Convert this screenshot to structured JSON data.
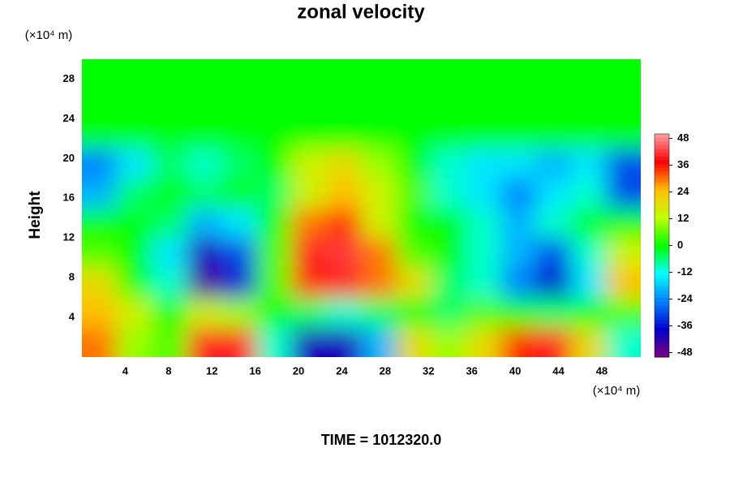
{
  "chart_data": {
    "type": "heatmap",
    "title": "zonal velocity",
    "ylabel": "Height",
    "x_unit": "(×10⁴ m)",
    "y_unit": "(×10⁴ m)",
    "footer": "TIME = 1012320.0",
    "xlim": [
      0,
      51.6
    ],
    "ylim": [
      0,
      30
    ],
    "xticks": [
      4,
      8,
      12,
      16,
      20,
      24,
      28,
      32,
      36,
      40,
      44,
      48
    ],
    "yticks": [
      4,
      8,
      12,
      16,
      20,
      24,
      28
    ],
    "x": [
      1.6,
      4.8,
      8.1,
      11.3,
      14.5,
      17.7,
      21,
      24.2,
      27.4,
      30.6,
      33.9,
      37.1,
      40.3,
      43.5,
      46.8,
      50
    ],
    "y": [
      1.5,
      4.5,
      7.5,
      10.5,
      13.5,
      16.5,
      19.5,
      22.5,
      25.5,
      28.5
    ],
    "z": [
      [
        30,
        10,
        5,
        40,
        40,
        -10,
        -40,
        -40,
        -20,
        20,
        10,
        20,
        35,
        40,
        20,
        -10
      ],
      [
        25,
        15,
        0,
        15,
        10,
        0,
        -5,
        -10,
        -5,
        0,
        -5,
        5,
        0,
        -5,
        0,
        5
      ],
      [
        20,
        0,
        -10,
        -45,
        -35,
        5,
        35,
        40,
        30,
        20,
        -5,
        -10,
        -25,
        -38,
        -15,
        25
      ],
      [
        5,
        0,
        -15,
        -40,
        -30,
        5,
        40,
        42,
        30,
        5,
        0,
        -10,
        -20,
        -30,
        -10,
        15
      ],
      [
        0,
        0,
        -5,
        -20,
        -15,
        0,
        30,
        35,
        15,
        0,
        0,
        -10,
        -20,
        -10,
        0,
        0
      ],
      [
        -20,
        -5,
        0,
        -5,
        0,
        -5,
        15,
        25,
        15,
        5,
        -10,
        -15,
        -25,
        -15,
        -10,
        -30
      ],
      [
        -25,
        -15,
        -5,
        -10,
        -5,
        0,
        15,
        20,
        10,
        0,
        -10,
        -15,
        -15,
        -20,
        -15,
        -30
      ],
      [
        0,
        0,
        0,
        0,
        0,
        0,
        0,
        0,
        0,
        0,
        0,
        0,
        0,
        0,
        0,
        0
      ],
      [
        0,
        0,
        0,
        0,
        0,
        0,
        0,
        0,
        0,
        0,
        0,
        0,
        0,
        0,
        0,
        0
      ],
      [
        0,
        0,
        0,
        0,
        0,
        0,
        0,
        0,
        0,
        0,
        0,
        0,
        0,
        0,
        0,
        0
      ]
    ],
    "zlim": [
      -50,
      50
    ],
    "cticks": [
      -48,
      -36,
      -24,
      -12,
      0,
      12,
      24,
      36,
      48
    ],
    "colorscale": [
      "#800080",
      "#0000cc",
      "#0080ff",
      "#00ffff",
      "#00ff00",
      "#c0ff00",
      "#ffc000",
      "#ff0000",
      "#ffa0a0"
    ]
  }
}
